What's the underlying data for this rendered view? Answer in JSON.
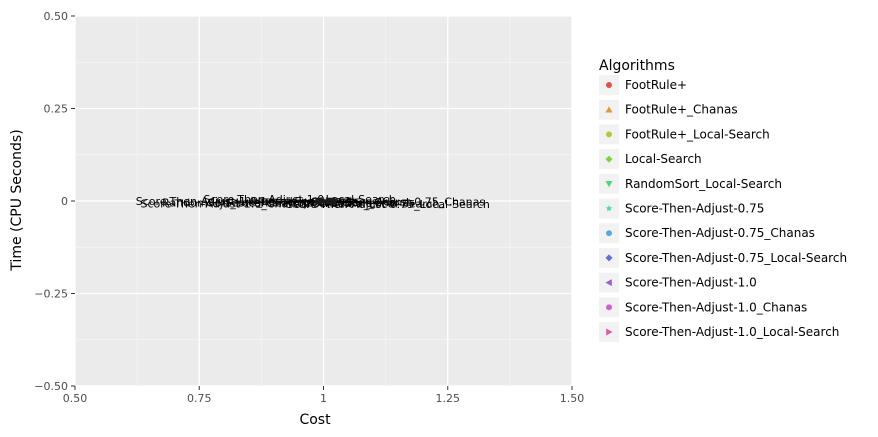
{
  "chart_data": {
    "type": "scatter",
    "title": "",
    "xlabel": "Cost",
    "ylabel": "Time (CPU Seconds)",
    "xlim": [
      0.5,
      1.5
    ],
    "ylim": [
      -0.5,
      0.5
    ],
    "x_ticks": [
      0.5,
      0.75,
      1.0,
      1.25,
      1.5
    ],
    "x_tick_labels": [
      "0.50",
      "0.75",
      "1",
      "1.25",
      "1.50"
    ],
    "y_ticks": [
      0.5,
      0.25,
      0.0,
      -0.25,
      -0.5
    ],
    "y_tick_labels": [
      "0.50",
      "0.25",
      "0",
      "−0.25",
      "−0.50"
    ],
    "grid": true,
    "legend_title": "Algorithms",
    "legend_position": "right",
    "series": [
      {
        "name": "FootRule+",
        "color": "#F8766D",
        "shape": "circle",
        "x": 1.01,
        "y": 0.0
      },
      {
        "name": "FootRule+_Chanas",
        "color": "#DB8E00",
        "shape": "triangle-up",
        "x": 1.02,
        "y": 0.0
      },
      {
        "name": "FootRule+_Local-Search",
        "color": "#AEA200",
        "shape": "circle",
        "x": 1.015,
        "y": 0.0
      },
      {
        "name": "Local-Search",
        "color": "#64B200",
        "shape": "diamond",
        "x": 1.02,
        "y": 0.0
      },
      {
        "name": "RandomSort_Local-Search",
        "color": "#00BD5C",
        "shape": "triangle-down",
        "x": 0.99,
        "y": 0.0
      },
      {
        "name": "Score-Then-Adjust-0.75",
        "color": "#00C1A7",
        "shape": "star",
        "x": 1.0,
        "y": 0.0
      },
      {
        "name": "Score-Then-Adjust-0.75_Chanas",
        "color": "#00BADE",
        "shape": "circle",
        "x": 1.02,
        "y": 0.0
      },
      {
        "name": "Score-Then-Adjust-0.75_Local-Search",
        "color": "#00A6FF",
        "shape": "diamond",
        "x": 1.02,
        "y": 0.0
      },
      {
        "name": "Score-Then-Adjust-1.0",
        "color": "#B385FF",
        "shape": "triangle-left",
        "x": 0.99,
        "y": 0.0
      },
      {
        "name": "Score-Then-Adjust-1.0_Chanas",
        "color": "#EF67EB",
        "shape": "circle",
        "x": 0.99,
        "y": 0.0
      },
      {
        "name": "Score-Then-Adjust-1.0_Local-Search",
        "color": "#FF63B6",
        "shape": "triangle-right",
        "x": 0.99,
        "y": 0.0
      }
    ],
    "legend_colors": [
      "#d9544a",
      "#d69b3b",
      "#b5c73b",
      "#7cd43f",
      "#4fd57a",
      "#4fd8a8",
      "#5aa8db",
      "#5f6fd6",
      "#9d5fd0",
      "#d05fd0",
      "#d95f9a"
    ],
    "annotations": [
      {
        "text": "Score-Then-Adjust-1.0",
        "x": 0.88,
        "y": 0.006
      },
      {
        "text": "Local-Search",
        "x": 1.075,
        "y": 0.006
      },
      {
        "text": "Score-Then-Adjust-1.0_Local-Search",
        "x": 0.82,
        "y": 0.0
      },
      {
        "text": "RandomSort_Local-Search",
        "x": 0.82,
        "y": -0.004
      },
      {
        "text": "Score-Then-Adjust-0.75_Chanas",
        "x": 1.15,
        "y": -0.001
      },
      {
        "text": "FootRule+_Chanas",
        "x": 1.08,
        "y": -0.003
      },
      {
        "text": "Score-Then-Adjust-0.75",
        "x": 0.93,
        "y": -0.004
      },
      {
        "text": "FootRule+",
        "x": 1.06,
        "y": -0.005
      },
      {
        "text": "Score-Then-Adjust-1.0_Chanas",
        "x": 0.8,
        "y": -0.007
      },
      {
        "text": "FootRule+_Local-Search",
        "x": 1.1,
        "y": -0.007
      },
      {
        "text": "Score-Then-Adjust-0.75_Local-Search",
        "x": 1.13,
        "y": -0.008
      }
    ]
  }
}
